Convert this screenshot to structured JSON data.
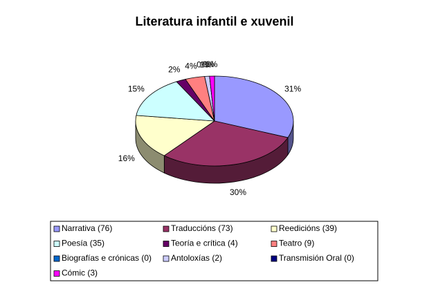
{
  "chart_data": {
    "type": "pie3d",
    "title": "Literatura infantil e xuvenil",
    "categories": [
      "Narrativa (76)",
      "Traduccións (73)",
      "Reedicións  (39)",
      "Poesía (35)",
      "Teoría e crítica (4)",
      "Teatro (9)",
      "Biografías e crónicas (0)",
      "Antoloxías (2)",
      "Transmisión Oral (0)",
      "Cómic (3)"
    ],
    "values": [
      31,
      30,
      16,
      15,
      2,
      4,
      0,
      1,
      0,
      1
    ],
    "value_labels": [
      "31%",
      "30%",
      "16%",
      "15%",
      "2%",
      "4%",
      "0%",
      "1%",
      "0%",
      "1%"
    ],
    "colors": [
      "#9999ff",
      "#993366",
      "#ffffcc",
      "#ccffff",
      "#660066",
      "#ff8080",
      "#0066cc",
      "#ccccff",
      "#000080",
      "#ff00ff"
    ],
    "legend": "bottom"
  }
}
